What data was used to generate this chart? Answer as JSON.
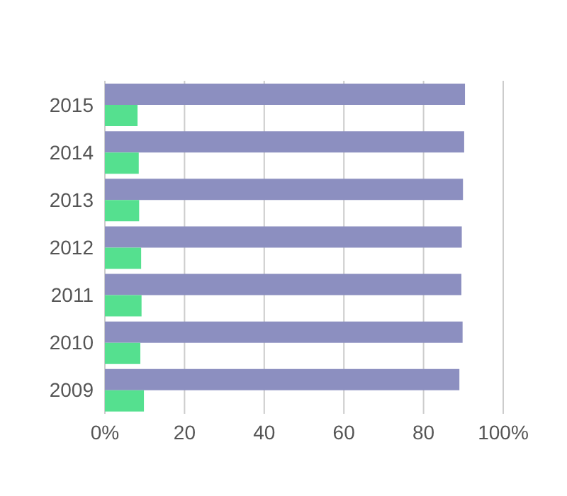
{
  "chart_data": {
    "type": "bar",
    "orientation": "horizontal",
    "categories": [
      "2015",
      "2014",
      "2013",
      "2012",
      "2011",
      "2010",
      "2009"
    ],
    "series": [
      {
        "color": "#8c8fc0",
        "values": [
          90.4,
          90.2,
          89.9,
          89.6,
          89.5,
          89.8,
          89.0
        ]
      },
      {
        "color": "#55e08f",
        "values": [
          8.2,
          8.5,
          8.6,
          9.1,
          9.2,
          8.9,
          9.8
        ]
      }
    ],
    "xlim": [
      0,
      100
    ],
    "xticks": [
      {
        "value": 0,
        "label": "0%"
      },
      20,
      40,
      60,
      80,
      {
        "value": 100,
        "label": "100%"
      }
    ],
    "grid": "x"
  }
}
